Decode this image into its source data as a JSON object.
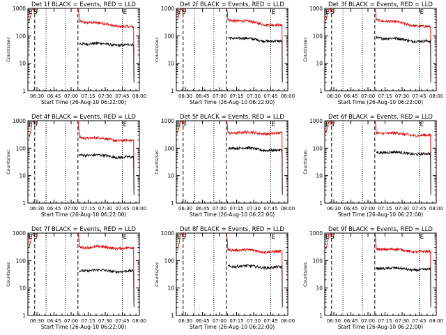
{
  "figure": {
    "xlabel": "Start Time (26-Aug-10 06:22:00)",
    "ylabel": "Counts/sec"
  },
  "markers": {
    "left": [
      "E",
      "S"
    ],
    "right": "E"
  },
  "colors": {
    "events": "#000000",
    "lld": "#e00000"
  },
  "chart_data": [
    {
      "type": "line",
      "title": "Det 1f BLACK = Events, RED = LLD",
      "xlabel": "Start Time (26-Aug-10 06:22:00)",
      "ylabel": "Counts/sec",
      "xticks": [
        "06:30",
        "06:45",
        "07:00",
        "07:15",
        "07:30",
        "07:45",
        "08:00"
      ],
      "yticks": [
        "1",
        "10",
        "100",
        "1000"
      ],
      "ylim": [
        1,
        1000
      ],
      "yscale": "log",
      "series": [
        {
          "color": "#e00000",
          "level_start": 350,
          "level_end": 200
        },
        {
          "color": "#000000",
          "level_start": 55,
          "level_end": 45
        }
      ]
    },
    {
      "type": "line",
      "title": "Det 2f BLACK = Events, RED = LLD",
      "xlabel": "Start Time (26-Aug-10 06:22:00)",
      "ylabel": "Counts/sec",
      "xticks": [
        "06:30",
        "06:45",
        "07:00",
        "07:15",
        "07:30",
        "07:45",
        "08:00"
      ],
      "yticks": [
        "1",
        "10",
        "100",
        "1000"
      ],
      "ylim": [
        1,
        1000
      ],
      "yscale": "log",
      "series": [
        {
          "color": "#e00000",
          "level_start": 400,
          "level_end": 230
        },
        {
          "color": "#000000",
          "level_start": 90,
          "level_end": 60
        }
      ]
    },
    {
      "type": "line",
      "title": "Det 3f BLACK = Events, RED = LLD",
      "xlabel": "Start Time (26-Aug-10 06:22:00)",
      "ylabel": "Counts/sec",
      "xticks": [
        "06:30",
        "06:45",
        "07:00",
        "07:15",
        "07:30",
        "07:45",
        "08:00"
      ],
      "yticks": [
        "1",
        "10",
        "100",
        "1000"
      ],
      "ylim": [
        1,
        1000
      ],
      "yscale": "log",
      "series": [
        {
          "color": "#e00000",
          "level_start": 400,
          "level_end": 200
        },
        {
          "color": "#000000",
          "level_start": 90,
          "level_end": 60
        }
      ]
    },
    {
      "type": "line",
      "title": "Det 4f BLACK = Events, RED = LLD",
      "xlabel": "Start Time (26-Aug-10 06:22:00)",
      "ylabel": "Counts/sec",
      "xticks": [
        "06:30",
        "06:45",
        "07:00",
        "07:15",
        "07:30",
        "07:45",
        "08:00"
      ],
      "yticks": [
        "1",
        "10",
        "100",
        "1000"
      ],
      "ylim": [
        1,
        1000
      ],
      "yscale": "log",
      "series": [
        {
          "color": "#e00000",
          "level_start": 260,
          "level_end": 180
        },
        {
          "color": "#000000",
          "level_start": 60,
          "level_end": 45
        }
      ]
    },
    {
      "type": "line",
      "title": "Det 5f BLACK = Events, RED = LLD",
      "xlabel": "Start Time (26-Aug-10 06:22:00)",
      "ylabel": "Counts/sec",
      "xticks": [
        "06:30",
        "06:45",
        "07:00",
        "07:15",
        "07:30",
        "07:45",
        "08:00"
      ],
      "yticks": [
        "1",
        "10",
        "100",
        "1000"
      ],
      "ylim": [
        1,
        1000
      ],
      "yscale": "log",
      "series": [
        {
          "color": "#e00000",
          "level_start": 380,
          "level_end": 340
        },
        {
          "color": "#000000",
          "level_start": 110,
          "level_end": 80
        }
      ]
    },
    {
      "type": "line",
      "title": "Det 6f BLACK = Events, RED = LLD",
      "xlabel": "Start Time (26-Aug-10 06:22:00)",
      "ylabel": "Counts/sec",
      "xticks": [
        "06:30",
        "06:45",
        "07:00",
        "07:15",
        "07:30",
        "07:45",
        "08:00"
      ],
      "yticks": [
        "1",
        "10",
        "100",
        "1000"
      ],
      "ylim": [
        1,
        1000
      ],
      "yscale": "log",
      "series": [
        {
          "color": "#e00000",
          "level_start": 380,
          "level_end": 280
        },
        {
          "color": "#000000",
          "level_start": 75,
          "level_end": 60
        }
      ]
    },
    {
      "type": "line",
      "title": "Det 7f BLACK = Events, RED = LLD",
      "xlabel": "Start Time (26-Aug-10 06:22:00)",
      "ylabel": "Counts/sec",
      "xticks": [
        "06:30",
        "06:45",
        "07:00",
        "07:15",
        "07:30",
        "07:45",
        "08:00"
      ],
      "yticks": [
        "1",
        "10",
        "100",
        "1000"
      ],
      "ylim": [
        1,
        1000
      ],
      "yscale": "log",
      "series": [
        {
          "color": "#e00000",
          "level_start": 320,
          "level_end": 280
        },
        {
          "color": "#000000",
          "level_start": 45,
          "level_end": 40
        }
      ]
    },
    {
      "type": "line",
      "title": "Det 8f BLACK = Events, RED = LLD",
      "xlabel": "Start Time (26-Aug-10 06:22:00)",
      "ylabel": "Counts/sec",
      "xticks": [
        "06:30",
        "06:45",
        "07:00",
        "07:15",
        "07:30",
        "07:45",
        "08:00"
      ],
      "yticks": [
        "1",
        "10",
        "100",
        "1000"
      ],
      "ylim": [
        1,
        1000
      ],
      "yscale": "log",
      "series": [
        {
          "color": "#e00000",
          "level_start": 260,
          "level_end": 200
        },
        {
          "color": "#000000",
          "level_start": 65,
          "level_end": 55
        }
      ]
    },
    {
      "type": "line",
      "title": "Det 9f BLACK = Events, RED = LLD",
      "xlabel": "Start Time (26-Aug-10 06:22:00)",
      "ylabel": "Counts/sec",
      "xticks": [
        "06:30",
        "06:45",
        "07:00",
        "07:15",
        "07:30",
        "07:45",
        "08:00"
      ],
      "yticks": [
        "1",
        "10",
        "100",
        "1000"
      ],
      "ylim": [
        1,
        1000
      ],
      "yscale": "log",
      "series": [
        {
          "color": "#e00000",
          "level_start": 280,
          "level_end": 200
        },
        {
          "color": "#000000",
          "level_start": 55,
          "level_end": 45
        }
      ]
    }
  ]
}
